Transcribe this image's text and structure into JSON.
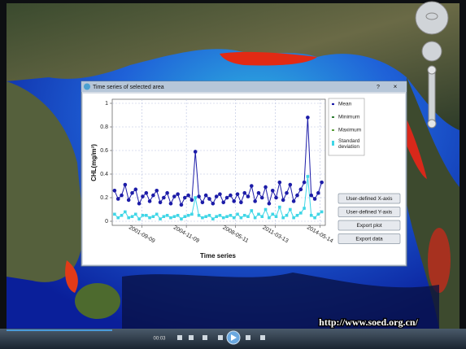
{
  "window": {
    "title": "Time series of selected area",
    "help": "?",
    "close": "×",
    "buttons": [
      "User-defined X-axis",
      "User-defined Y-axis",
      "Export plot",
      "Export data"
    ]
  },
  "chart_data": {
    "type": "line",
    "y_label": "CHL(mg/m³)",
    "x_label": "Time series",
    "x": [
      "1999-10-01",
      "2000-01-01",
      "2000-04-01",
      "2000-07-01",
      "2000-10-01",
      "2001-01-01",
      "2001-04-01",
      "2001-07-01",
      "2001-10-01",
      "2002-01-01",
      "2002-04-01",
      "2002-07-01",
      "2002-10-01",
      "2003-01-01",
      "2003-04-01",
      "2003-07-01",
      "2003-10-01",
      "2004-01-01",
      "2004-04-01",
      "2004-07-01",
      "2004-10-01",
      "2005-01-01",
      "2005-04-01",
      "2005-07-01",
      "2005-10-01",
      "2006-01-01",
      "2006-04-01",
      "2006-07-01",
      "2006-10-01",
      "2007-01-01",
      "2007-04-01",
      "2007-07-01",
      "2007-10-01",
      "2008-01-01",
      "2008-04-01",
      "2008-07-01",
      "2008-10-01",
      "2009-01-01",
      "2009-04-01",
      "2009-07-01",
      "2009-10-01",
      "2010-01-01",
      "2010-04-01",
      "2010-07-01",
      "2010-10-01",
      "2011-01-01",
      "2011-04-01",
      "2011-07-01",
      "2011-10-01",
      "2012-01-01",
      "2012-04-01",
      "2012-07-01",
      "2012-10-01",
      "2013-01-01",
      "2013-04-01",
      "2013-07-01",
      "2013-10-01",
      "2014-01-01",
      "2014-04-01",
      "2014-07-01"
    ],
    "series": [
      {
        "name": "Mean",
        "color": "#1c1ca8",
        "marker": "circle",
        "values": [
          0.26,
          0.19,
          0.22,
          0.31,
          0.18,
          0.24,
          0.27,
          0.15,
          0.21,
          0.24,
          0.17,
          0.22,
          0.26,
          0.16,
          0.2,
          0.24,
          0.15,
          0.21,
          0.23,
          0.14,
          0.2,
          0.22,
          0.18,
          0.59,
          0.21,
          0.16,
          0.22,
          0.19,
          0.15,
          0.21,
          0.23,
          0.16,
          0.2,
          0.22,
          0.17,
          0.23,
          0.16,
          0.24,
          0.21,
          0.3,
          0.17,
          0.24,
          0.2,
          0.29,
          0.15,
          0.26,
          0.2,
          0.33,
          0.18,
          0.24,
          0.31,
          0.17,
          0.22,
          0.27,
          0.33,
          0.88,
          0.22,
          0.19,
          0.24,
          0.33
        ]
      },
      {
        "name": "Minimum",
        "color": "#2e7d32",
        "marker": "none",
        "values": [
          null,
          null,
          null,
          null,
          null,
          null,
          null,
          null,
          null,
          null,
          null,
          null,
          null,
          null,
          null,
          null,
          null,
          null,
          null,
          null,
          null,
          null,
          null,
          null,
          null,
          null,
          null,
          null,
          null,
          null,
          null,
          null,
          null,
          null,
          null,
          null,
          null,
          null,
          null,
          null,
          null,
          null,
          null,
          null,
          null,
          null,
          null,
          null,
          null,
          null,
          null,
          null,
          null,
          null,
          null,
          null,
          null,
          null,
          null,
          null
        ]
      },
      {
        "name": "Maximum",
        "color": "#5a9e3a",
        "marker": "none",
        "values": [
          null,
          null,
          null,
          null,
          null,
          null,
          null,
          null,
          null,
          null,
          null,
          null,
          null,
          null,
          null,
          null,
          null,
          null,
          null,
          null,
          null,
          null,
          null,
          null,
          null,
          null,
          null,
          null,
          null,
          null,
          null,
          null,
          null,
          null,
          null,
          null,
          null,
          null,
          null,
          null,
          null,
          null,
          null,
          null,
          null,
          null,
          null,
          null,
          null,
          null,
          null,
          null,
          null,
          null,
          null,
          null,
          null,
          null,
          null,
          null
        ]
      },
      {
        "name": "Standard deviation",
        "color": "#3fd6e6",
        "marker": "square",
        "values": [
          0.06,
          0.03,
          0.05,
          0.08,
          0.03,
          0.04,
          0.06,
          0.02,
          0.05,
          0.05,
          0.03,
          0.04,
          0.06,
          0.02,
          0.04,
          0.05,
          0.03,
          0.04,
          0.05,
          0.02,
          0.04,
          0.05,
          0.06,
          0.2,
          0.05,
          0.03,
          0.04,
          0.05,
          0.02,
          0.04,
          0.05,
          0.03,
          0.04,
          0.05,
          0.03,
          0.06,
          0.03,
          0.05,
          0.04,
          0.09,
          0.03,
          0.06,
          0.04,
          0.1,
          0.03,
          0.06,
          0.04,
          0.12,
          0.03,
          0.05,
          0.1,
          0.03,
          0.05,
          0.07,
          0.11,
          0.38,
          0.05,
          0.03,
          0.06,
          0.08
        ]
      }
    ],
    "xlim": [
      "1999-08-01",
      "2014-10-01"
    ],
    "xticks": [
      "2001-09-09",
      "2004-11-09",
      "2008-05-11",
      "2011-03-13",
      "2014-05-14"
    ],
    "ylim": [
      0,
      1
    ],
    "yticks": [
      0,
      0.2,
      0.4,
      0.6,
      0.8,
      1
    ],
    "grid": true
  },
  "player": {
    "time": "00:03"
  },
  "watermark": "http://www.soed.org.cn/"
}
